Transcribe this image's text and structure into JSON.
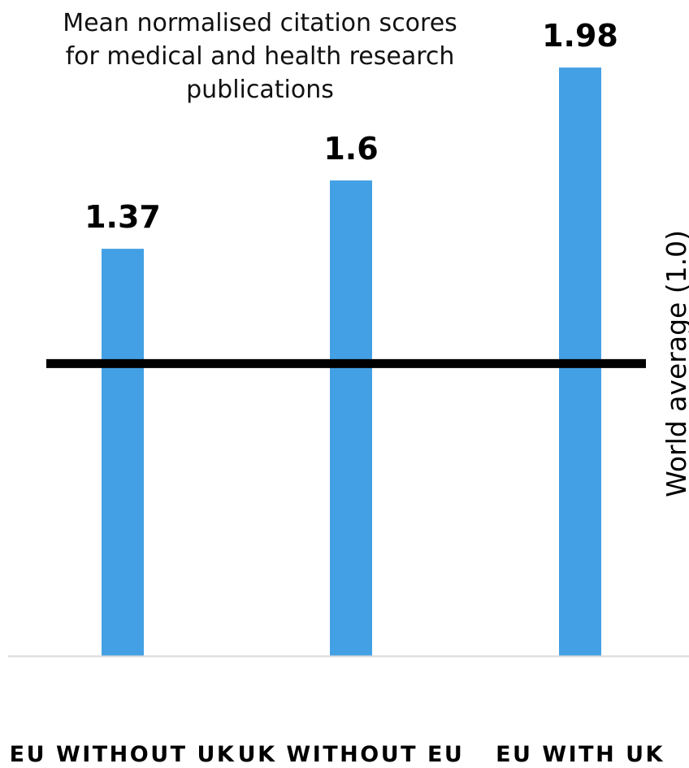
{
  "chart_data": {
    "type": "bar",
    "title_lines": [
      "Mean normalised citation scores",
      "for medical and health research",
      "publications"
    ],
    "categories": [
      "EU WITHOUT UK",
      "UK WITHOUT EU",
      "EU WITH UK"
    ],
    "values": [
      1.37,
      1.6,
      1.98
    ],
    "data_labels": [
      "1.37",
      "1.6",
      "1.98"
    ],
    "reference_line": {
      "value": 1.0,
      "label": "World average (1.0)",
      "color": "#000000"
    },
    "bar_color": "#44a0e4",
    "ylim": [
      0,
      2.15
    ],
    "grid": false,
    "legend": "none"
  }
}
